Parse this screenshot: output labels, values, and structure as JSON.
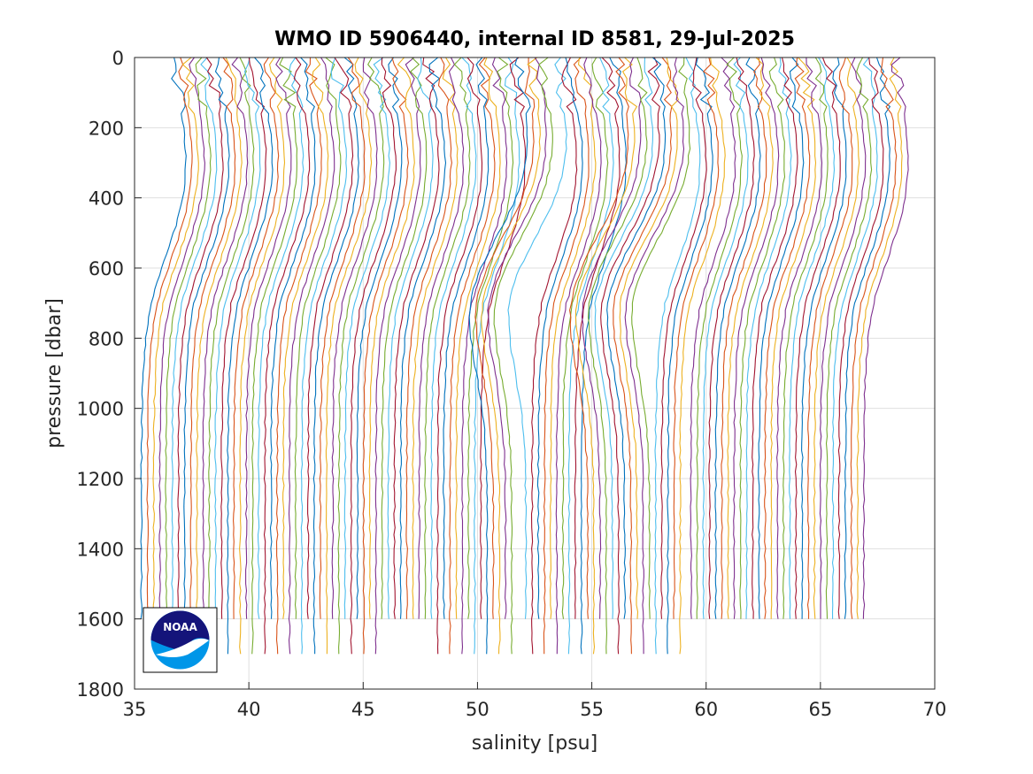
{
  "chart_data": {
    "type": "line",
    "title": "WMO ID 5906440, internal ID 8581, 29-Jul-2025",
    "xlabel": "salinity [psu]",
    "ylabel": "pressure [dbar]",
    "xlim": [
      35,
      70
    ],
    "ylim": [
      0,
      1800
    ],
    "y_reversed": true,
    "grid": true,
    "xticks": [
      "35",
      "40",
      "45",
      "50",
      "55",
      "60",
      "65",
      "70"
    ],
    "yticks": [
      "0",
      "200",
      "400",
      "600",
      "800",
      "1000",
      "1200",
      "1400",
      "1600",
      "1800"
    ],
    "profile_count": 116,
    "profile_offset_psu": 0.27,
    "first_profile_deep_salinity_psu": 35.3,
    "max_pressure_dbar": 1600,
    "extended_profiles_max_pressure_dbar": 1700,
    "series_colors": [
      "#0072bd",
      "#d95319",
      "#edb120",
      "#7e2f8e",
      "#77ac30",
      "#4dbeee",
      "#a2142f"
    ],
    "logo": {
      "text": "NOAA",
      "colors": {
        "top": "#14147a",
        "bottom": "#0096e8"
      }
    }
  }
}
